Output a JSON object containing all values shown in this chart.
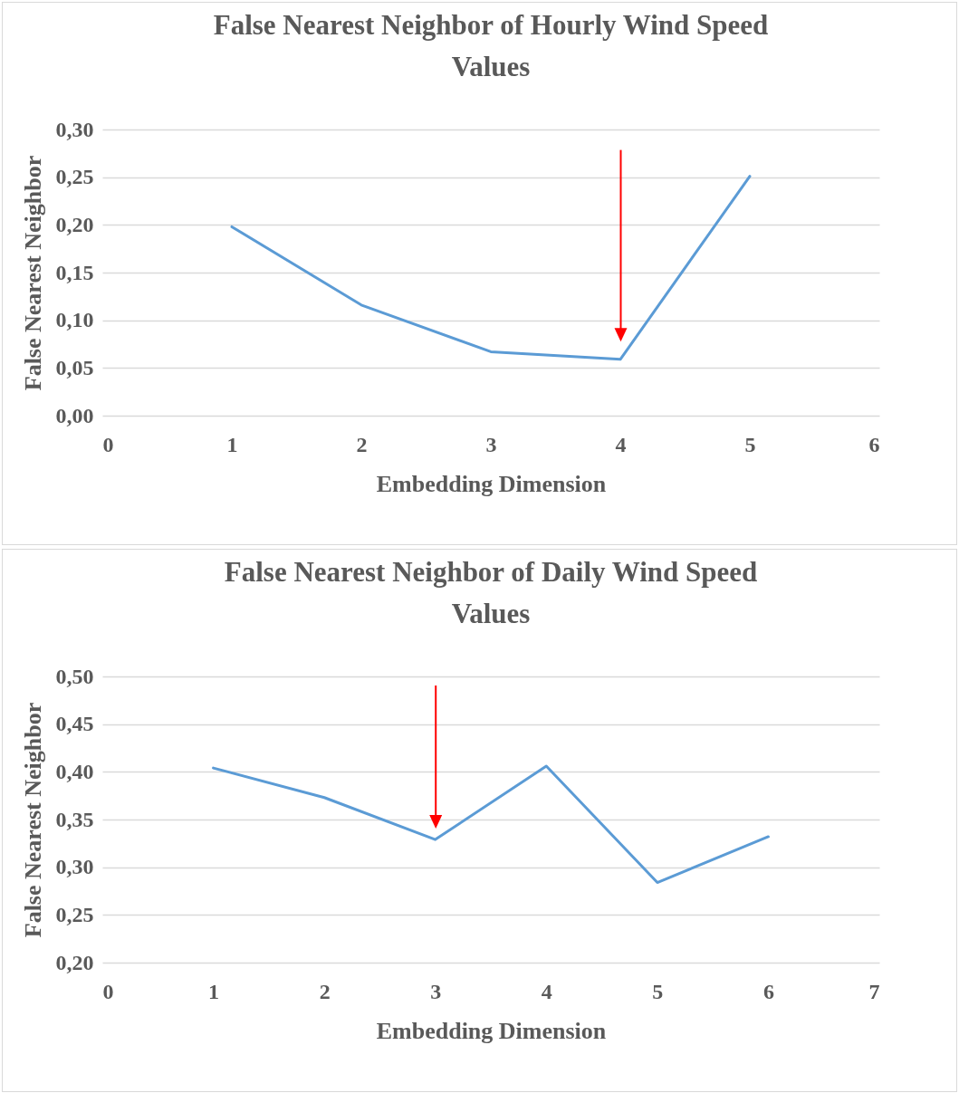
{
  "chart_data": [
    {
      "type": "line",
      "title": "False Nearest Neighbor of Hourly Wind Speed Values",
      "xlabel": "Embedding  Dimension",
      "ylabel": "False Nearest Neighbor",
      "x": [
        1,
        2,
        3,
        4,
        5
      ],
      "series": [
        {
          "color": "#5b9bd5",
          "values": [
            0.198,
            0.116,
            0.067,
            0.059,
            0.251
          ]
        }
      ],
      "xlim": [
        0,
        6
      ],
      "xticks": [
        0,
        1,
        2,
        3,
        4,
        5,
        6
      ],
      "ylim": [
        0,
        0.3
      ],
      "yticks": [
        {
          "value": 0,
          "label": "0,00"
        },
        {
          "value": 0.05,
          "label": "0,05"
        },
        {
          "value": 0.1,
          "label": "0,10"
        },
        {
          "value": 0.15,
          "label": "0,15"
        },
        {
          "value": 0.2,
          "label": "0,20"
        },
        {
          "value": 0.25,
          "label": "0,25"
        },
        {
          "value": 0.3,
          "label": "0,30"
        }
      ],
      "grid": "y",
      "marker": "none",
      "line_style": "solid"
    },
    {
      "type": "line",
      "title": "False Nearest Neighbor of Daily Wind Speed Values",
      "xlabel": "Embedding  Dimension",
      "ylabel": "False Nearest Neighbor",
      "x": [
        1,
        2,
        3,
        4,
        5,
        6
      ],
      "series": [
        {
          "color": "#5b9bd5",
          "values": [
            0.404,
            0.373,
            0.329,
            0.406,
            0.284,
            0.332
          ]
        }
      ],
      "xlim": [
        0,
        7
      ],
      "xticks": [
        0,
        1,
        2,
        3,
        4,
        5,
        6,
        7
      ],
      "ylim": [
        0.2,
        0.5
      ],
      "yticks": [
        {
          "value": 0.2,
          "label": "0,20"
        },
        {
          "value": 0.25,
          "label": "0,25"
        },
        {
          "value": 0.3,
          "label": "0,30"
        },
        {
          "value": 0.35,
          "label": "0,35"
        },
        {
          "value": 0.4,
          "label": "0,40"
        },
        {
          "value": 0.45,
          "label": "0,45"
        },
        {
          "value": 0.5,
          "label": "0,50"
        }
      ],
      "grid": "y",
      "marker": "none",
      "line_style": "solid"
    }
  ]
}
